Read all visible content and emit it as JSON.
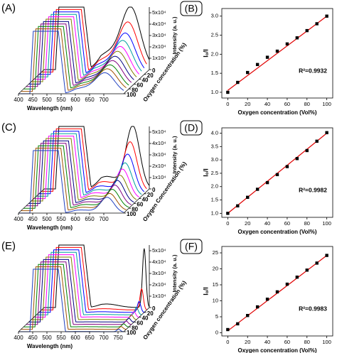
{
  "chart_data": [
    {
      "type": "waterfall",
      "panel_label": "(A)",
      "xlabel": "Wavelength (nm)",
      "ylabel": "Oxygen concentration (%)",
      "zlabel": "Intensity (a. u.)",
      "xlim": [
        400,
        770
      ],
      "xticks": [
        400,
        450,
        500,
        550,
        600,
        650,
        700
      ],
      "ylim": [
        0,
        100
      ],
      "yticks": [
        0,
        20,
        40,
        60,
        80,
        100
      ],
      "zlim": [
        0,
        55000
      ],
      "zticks": [
        {
          "value": 10000,
          "label": "1x10⁴"
        },
        {
          "value": 20000,
          "label": "2x10⁴"
        },
        {
          "value": 30000,
          "label": "3x10⁴"
        },
        {
          "value": 40000,
          "label": "4x10⁴"
        },
        {
          "value": 50000,
          "label": "5x10⁴"
        }
      ],
      "depths": [
        0,
        10,
        20,
        30,
        40,
        50,
        60,
        70,
        80,
        90,
        100
      ],
      "peaks": [
        54000,
        42900,
        35500,
        31200,
        28100,
        26000,
        23800,
        22200,
        20600,
        19300,
        18000
      ],
      "colors": [
        "#000000",
        "#ff0000",
        "#0000ff",
        "#00a0a0",
        "#ff00ff",
        "#808000",
        "#000080",
        "#800080",
        "#008000",
        "#a05000",
        "#2040c0"
      ]
    },
    {
      "type": "scatter",
      "panel_label": "(B)",
      "xlabel": "Oxygen concentration (Vol%)",
      "ylabel": "I₀/I",
      "annotation": "R²=0.9932",
      "xlim": [
        -6,
        106
      ],
      "xticks": [
        0,
        20,
        40,
        60,
        80,
        100
      ],
      "ylim": [
        0.85,
        3.2
      ],
      "yticks": [
        {
          "value": 1,
          "label": "1.0"
        },
        1.5,
        {
          "value": 2,
          "label": "2.0"
        },
        2.5,
        {
          "value": 3,
          "label": "3.0"
        }
      ],
      "x": [
        0,
        10,
        20,
        30,
        40,
        50,
        60,
        70,
        80,
        90,
        100
      ],
      "values": [
        1.0,
        1.26,
        1.52,
        1.73,
        1.92,
        2.08,
        2.27,
        2.43,
        2.62,
        2.8,
        3.0
      ],
      "color": "#000000",
      "fit": {
        "x": [
          0,
          100
        ],
        "values": [
          1.05,
          3.0
        ],
        "color": "#e00000"
      }
    },
    {
      "type": "waterfall",
      "panel_label": "(C)",
      "xlabel": "Wavelength (nm)",
      "ylabel": "Oxygen Concentration (%)",
      "zlabel": "Intensity (a. u.)",
      "xlim": [
        400,
        770
      ],
      "xticks": [
        400,
        450,
        500,
        550,
        600,
        650,
        700
      ],
      "ylim": [
        0,
        100
      ],
      "yticks": [
        0,
        20,
        40,
        60,
        80,
        100
      ],
      "zlim": [
        0,
        55000
      ],
      "zticks": [
        {
          "value": 10000,
          "label": "1x10⁴"
        },
        {
          "value": 20000,
          "label": "2x10⁴"
        },
        {
          "value": 30000,
          "label": "3x10⁴"
        },
        {
          "value": 40000,
          "label": "4x10⁴"
        },
        {
          "value": 50000,
          "label": "5x10⁴"
        }
      ],
      "depths": [
        0,
        10,
        20,
        30,
        40,
        50,
        60,
        70,
        80,
        90,
        100
      ],
      "peaks": [
        55000,
        43000,
        34400,
        28900,
        25600,
        22400,
        20000,
        18000,
        16400,
        14900,
        13700
      ],
      "colors": [
        "#000000",
        "#ff0000",
        "#0000ff",
        "#00a0a0",
        "#ff00ff",
        "#808000",
        "#000080",
        "#800080",
        "#008000",
        "#a05000",
        "#2040c0"
      ]
    },
    {
      "type": "scatter",
      "panel_label": "(D)",
      "xlabel": "Oxygen concentration (Vol%)",
      "ylabel": "I₀/I",
      "annotation": "R²=0.9982",
      "xlim": [
        -6,
        106
      ],
      "xticks": [
        0,
        20,
        40,
        60,
        80,
        100
      ],
      "ylim": [
        0.85,
        4.2
      ],
      "yticks": [
        {
          "value": 1,
          "label": "1.0"
        },
        1.5,
        {
          "value": 2,
          "label": "2.0"
        },
        2.5,
        {
          "value": 3,
          "label": "3.0"
        },
        3.5,
        {
          "value": 4,
          "label": "4.0"
        }
      ],
      "x": [
        0,
        10,
        20,
        30,
        40,
        50,
        60,
        70,
        80,
        90,
        100
      ],
      "values": [
        1.0,
        1.28,
        1.6,
        1.9,
        2.15,
        2.45,
        2.75,
        3.05,
        3.35,
        3.7,
        4.02
      ],
      "color": "#000000",
      "fit": {
        "x": [
          0,
          100
        ],
        "values": [
          1.0,
          4.0
        ],
        "color": "#e00000"
      }
    },
    {
      "type": "waterfall",
      "panel_label": "(E)",
      "xlabel": "Wavelength (nm)",
      "ylabel": "Oxygen concentration (%)",
      "zlabel": "Intensity (a. u.)",
      "xlim": [
        400,
        770
      ],
      "xticks": [
        400,
        450,
        500,
        550,
        600,
        650,
        700,
        750
      ],
      "ylim": [
        0,
        100
      ],
      "yticks": [
        0,
        20,
        40,
        60,
        80,
        100
      ],
      "zlim": [
        0,
        55000
      ],
      "zticks": [
        {
          "value": 10000,
          "label": "1x10⁴"
        },
        {
          "value": 20000,
          "label": "2x10⁴"
        },
        {
          "value": 30000,
          "label": "3x10⁴"
        },
        {
          "value": 40000,
          "label": "4x10⁴"
        },
        {
          "value": 50000,
          "label": "5x10⁴"
        }
      ],
      "depths": [
        0,
        10,
        20,
        30,
        40,
        50,
        60,
        70,
        80,
        90,
        100
      ],
      "peaks": [
        52000,
        18600,
        9600,
        6400,
        5000,
        4100,
        3400,
        3000,
        2650,
        2400,
        2150
      ],
      "colors": [
        "#000000",
        "#ff0000",
        "#0000ff",
        "#00a0a0",
        "#ff00ff",
        "#808000",
        "#000080",
        "#800080",
        "#008000",
        "#a05000",
        "#2040c0"
      ]
    },
    {
      "type": "scatter",
      "panel_label": "(F)",
      "xlabel": "Oxygen concentration (Vol%)",
      "ylabel": "I₀/I",
      "annotation": "R²=0.9983",
      "xlim": [
        -6,
        106
      ],
      "xticks": [
        0,
        20,
        40,
        60,
        80,
        100
      ],
      "ylim": [
        -1,
        27
      ],
      "yticks": [
        0,
        5,
        10,
        15,
        20,
        25
      ],
      "x": [
        0,
        10,
        20,
        30,
        40,
        50,
        60,
        70,
        80,
        90,
        100
      ],
      "values": [
        1.0,
        2.8,
        5.4,
        8.1,
        10.5,
        12.8,
        15.2,
        17.4,
        19.6,
        21.8,
        24.2
      ],
      "color": "#000000",
      "fit": {
        "x": [
          0,
          100
        ],
        "values": [
          0.6,
          24.2
        ],
        "color": "#e00000"
      }
    }
  ]
}
